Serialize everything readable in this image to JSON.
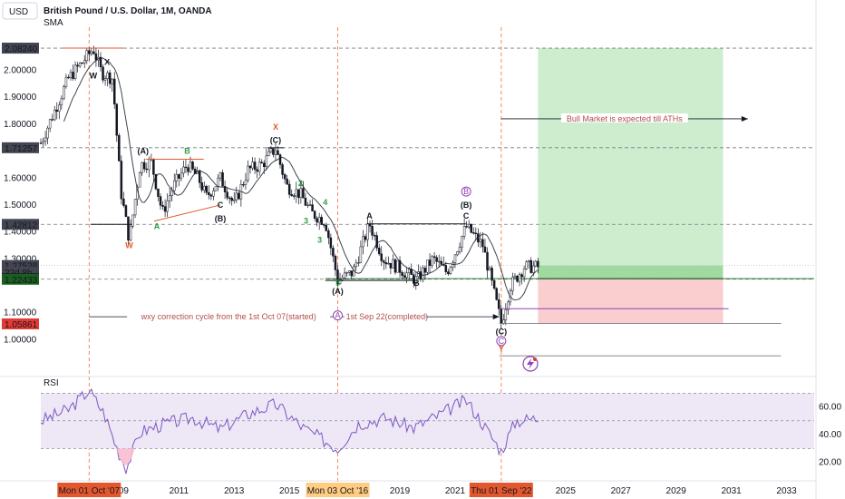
{
  "header": {
    "currency": "USD",
    "title": "British Pound / U.S. Dollar, 1M, OANDA",
    "indicator": "SMA"
  },
  "colors": {
    "up_candle": "#26a69a",
    "down_candle": "#ef5350",
    "candle": "#131722",
    "sma": "#131722",
    "rsi_line": "#7e57c2",
    "rsi_band": "#ede7f6",
    "profit_zone": "#c8ebc9",
    "loss_zone": "#f9c9c9",
    "crosshair": "#f57c4a",
    "wave_red": "#e4572e",
    "wave_green": "#2e9e42",
    "wave_purple": "#8e44ad"
  },
  "price_axis": {
    "ticks": [
      "2.00000",
      "1.90000",
      "1.80000",
      "1.60000",
      "1.50000",
      "1.40000",
      "1.30000",
      "1.10000",
      "1.00000"
    ],
    "tick_values": [
      2.0,
      1.9,
      1.8,
      1.6,
      1.5,
      1.4,
      1.3,
      1.1,
      1.0
    ],
    "badges": [
      {
        "label": "2.08247",
        "value": 2.08247,
        "bg": "#2e9e42",
        "fg": "#ffffff"
      },
      {
        "label": "2.08240",
        "value": 2.0824,
        "bg": "#434651",
        "fg": "#ffffff"
      },
      {
        "label": "1.71257",
        "value": 1.71257,
        "bg": "#434651",
        "fg": "#ffffff"
      },
      {
        "label": "1.42812",
        "value": 1.42812,
        "bg": "#434651",
        "fg": "#ffffff"
      },
      {
        "label": "1.27528",
        "value": 1.27528,
        "bg": "#434651",
        "fg": "#ffffff"
      },
      {
        "label": "22d 8h",
        "value": 1.25,
        "bg": "#434651",
        "fg": "#ffffff"
      },
      {
        "label": "1.22660",
        "value": 1.2266,
        "bg": "#131722",
        "fg": "#ffffff"
      },
      {
        "label": "1.22433",
        "value": 1.22433,
        "bg": "#1b5e20",
        "fg": "#ffffff"
      },
      {
        "label": "1.05861",
        "value": 1.05861,
        "bg": "#e53935",
        "fg": "#ffffff"
      }
    ]
  },
  "rsi_axis": {
    "label": "RSI",
    "ticks": [
      "60.00",
      "40.00",
      "20.00"
    ],
    "tick_values": [
      60,
      40,
      20
    ]
  },
  "time_axis": {
    "labels": [
      "09",
      "2011",
      "2013",
      "2015",
      "2019",
      "2021",
      "2025",
      "2027",
      "2029",
      "2031",
      "2033"
    ],
    "label_years": [
      2009.0,
      2011.0,
      2013.0,
      2015.0,
      2019.0,
      2021.0,
      2025.0,
      2027.0,
      2029.0,
      2031.0,
      2033.0
    ],
    "highlights": [
      {
        "label": "Mon 01 Oct '07",
        "year": 2007.75,
        "bg": "#e4572e",
        "fg": "#ffffff"
      },
      {
        "label": "Mon 03 Oct '16",
        "year": 2016.75,
        "bg": "#ffcc80",
        "fg": "#131722"
      },
      {
        "label": "Thu 01 Sep '22",
        "year": 2022.67,
        "bg": "#e4572e",
        "fg": "#ffffff"
      }
    ]
  },
  "annotations": {
    "bull_text": "Bull Market is expected till ATHs",
    "wxy_text_left": "wxy correction cycle from the 1st Oct 07(started)",
    "wxy_text_right": "1st Sep 22(completed)",
    "waves": [
      {
        "label": "X",
        "year": 2008.4,
        "price": 2.02,
        "color": "#131722"
      },
      {
        "label": "W",
        "year": 2007.9,
        "price": 1.97,
        "color": "#131722"
      },
      {
        "label": "W",
        "year": 2009.2,
        "price": 1.34,
        "color": "#e4572e"
      },
      {
        "label": "(A)",
        "year": 2009.7,
        "price": 1.69,
        "color": "#131722"
      },
      {
        "label": "B",
        "year": 2011.3,
        "price": 1.69,
        "color": "#2e9e42"
      },
      {
        "label": "A",
        "year": 2010.2,
        "price": 1.41,
        "color": "#2e9e42"
      },
      {
        "label": "C",
        "year": 2012.5,
        "price": 1.49,
        "color": "#131722"
      },
      {
        "label": "(B)",
        "year": 2012.5,
        "price": 1.44,
        "color": "#131722"
      },
      {
        "label": "X",
        "year": 2014.5,
        "price": 1.78,
        "color": "#e4572e"
      },
      {
        "label": "(C)",
        "year": 2014.5,
        "price": 1.73,
        "color": "#131722"
      },
      {
        "label": "2",
        "year": 2015.4,
        "price": 1.57,
        "color": "#2e9e42"
      },
      {
        "label": "4",
        "year": 2016.3,
        "price": 1.5,
        "color": "#2e9e42"
      },
      {
        "label": "3",
        "year": 2015.6,
        "price": 1.43,
        "color": "#2e9e42"
      },
      {
        "label": "3",
        "year": 2016.1,
        "price": 1.36,
        "color": "#2e9e42"
      },
      {
        "label": "5",
        "year": 2016.75,
        "price": 1.2,
        "color": "#2e9e42"
      },
      {
        "label": "(A)",
        "year": 2016.75,
        "price": 1.17,
        "color": "#131722"
      },
      {
        "label": "A",
        "year": 2017.9,
        "price": 1.45,
        "color": "#131722"
      },
      {
        "label": "B",
        "year": 2019.6,
        "price": 1.2,
        "color": "#131722"
      },
      {
        "label": "C",
        "year": 2021.4,
        "price": 1.45,
        "color": "#131722"
      },
      {
        "label": "(B)",
        "year": 2021.4,
        "price": 1.49,
        "color": "#131722"
      },
      {
        "label": "(C)",
        "year": 2022.67,
        "price": 1.02,
        "color": "#131722"
      }
    ],
    "circled": [
      {
        "label": "B",
        "year": 2021.4,
        "price": 1.54
      },
      {
        "label": "A",
        "year": 2016.75,
        "price": 1.08
      },
      {
        "label": "C",
        "year": 2022.67,
        "price": 0.985
      }
    ],
    "red_y": {
      "label": "Y",
      "year": 2022.67,
      "price": 0.955
    }
  },
  "chart_data": {
    "type": "line",
    "title": "British Pound / U.S. Dollar, 1M, OANDA",
    "xlabel": "",
    "ylabel": "",
    "x_range": [
      2006.0,
      2034.0
    ],
    "y_range": [
      0.88,
      2.16
    ],
    "levels": [
      2.0824,
      1.71257,
      1.42812,
      1.22433
    ],
    "price_path": {
      "x": [
        2006.0,
        2006.5,
        2007.0,
        2007.5,
        2007.9,
        2008.2,
        2008.6,
        2008.9,
        2009.2,
        2009.6,
        2010.0,
        2010.4,
        2010.8,
        2011.3,
        2011.7,
        2012.0,
        2012.5,
        2013.0,
        2013.5,
        2014.0,
        2014.5,
        2014.9,
        2015.4,
        2015.8,
        2016.3,
        2016.75,
        2017.3,
        2017.9,
        2018.4,
        2018.9,
        2019.6,
        2020.2,
        2020.7,
        2021.4,
        2022.0,
        2022.67,
        2023.0,
        2023.5,
        2024.0
      ],
      "y": [
        1.73,
        1.85,
        1.97,
        2.03,
        2.08,
        1.99,
        1.97,
        1.55,
        1.37,
        1.65,
        1.66,
        1.47,
        1.57,
        1.65,
        1.6,
        1.53,
        1.6,
        1.5,
        1.63,
        1.65,
        1.71,
        1.57,
        1.54,
        1.47,
        1.44,
        1.22,
        1.25,
        1.43,
        1.3,
        1.27,
        1.22,
        1.3,
        1.25,
        1.42,
        1.35,
        1.06,
        1.2,
        1.27,
        1.27
      ]
    },
    "targets": {
      "entry": 1.2266,
      "stop": 1.05861,
      "take_profit": 2.08247
    },
    "rsi": {
      "range": [
        10,
        80
      ],
      "upper_band": 70,
      "middle": 50,
      "lower_band": 30,
      "x": [
        2006.0,
        2007.0,
        2007.75,
        2008.3,
        2008.8,
        2009.1,
        2009.6,
        2010.5,
        2011.5,
        2012.5,
        2013.5,
        2014.5,
        2015.5,
        2016.75,
        2017.5,
        2018.5,
        2019.5,
        2020.5,
        2021.4,
        2022.0,
        2022.67,
        2023.2,
        2024.0
      ],
      "y": [
        50,
        58,
        72,
        55,
        28,
        16,
        42,
        48,
        52,
        44,
        55,
        62,
        45,
        30,
        48,
        52,
        45,
        55,
        65,
        48,
        28,
        50,
        52
      ]
    }
  }
}
